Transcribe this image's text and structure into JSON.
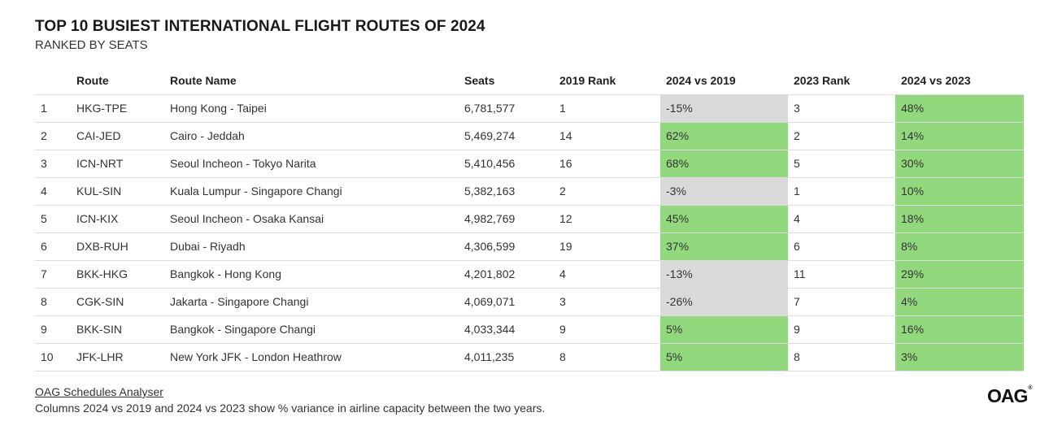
{
  "title": "TOP 10 BUSIEST INTERNATIONAL FLIGHT ROUTES OF 2024",
  "subtitle": "RANKED BY SEATS",
  "chart_data": {
    "type": "table",
    "columns": [
      "",
      "Route",
      "Route Name",
      "Seats",
      "2019 Rank",
      "2024 vs 2019",
      "2023 Rank",
      "2024 vs 2023"
    ],
    "rows": [
      [
        "1",
        "HKG-TPE",
        "Hong Kong - Taipei",
        "6,781,577",
        "1",
        "-15%",
        "3",
        "48%"
      ],
      [
        "2",
        "CAI-JED",
        "Cairo - Jeddah",
        "5,469,274",
        "14",
        "62%",
        "2",
        "14%"
      ],
      [
        "3",
        "ICN-NRT",
        "Seoul Incheon - Tokyo Narita",
        "5,410,456",
        "16",
        "68%",
        "5",
        "30%"
      ],
      [
        "4",
        "KUL-SIN",
        "Kuala Lumpur - Singapore Changi",
        "5,382,163",
        "2",
        "-3%",
        "1",
        "10%"
      ],
      [
        "5",
        "ICN-KIX",
        "Seoul Incheon - Osaka Kansai",
        "4,982,769",
        "12",
        "45%",
        "4",
        "18%"
      ],
      [
        "6",
        "DXB-RUH",
        "Dubai - Riyadh",
        "4,306,599",
        "19",
        "37%",
        "6",
        "8%"
      ],
      [
        "7",
        "BKK-HKG",
        "Bangkok - Hong Kong",
        "4,201,802",
        "4",
        "-13%",
        "11",
        "29%"
      ],
      [
        "8",
        "CGK-SIN",
        "Jakarta - Singapore Changi",
        "4,069,071",
        "3",
        "-26%",
        "7",
        "4%"
      ],
      [
        "9",
        "BKK-SIN",
        "Bangkok - Singapore Changi",
        "4,033,344",
        "9",
        "5%",
        "9",
        "16%"
      ],
      [
        "10",
        "JFK-LHR",
        "New York JFK - London Heathrow",
        "4,011,235",
        "8",
        "5%",
        "8",
        "3%"
      ]
    ]
  },
  "colors": {
    "positive": "#92d97e",
    "negative": "#d9d9d9"
  },
  "footer": {
    "source_link": "OAG Schedules Analyser",
    "note": "Columns 2024 vs 2019 and 2024 vs 2023 show % variance in airline capacity between the two years."
  },
  "logo": {
    "text": "OAG",
    "mark": "®"
  }
}
